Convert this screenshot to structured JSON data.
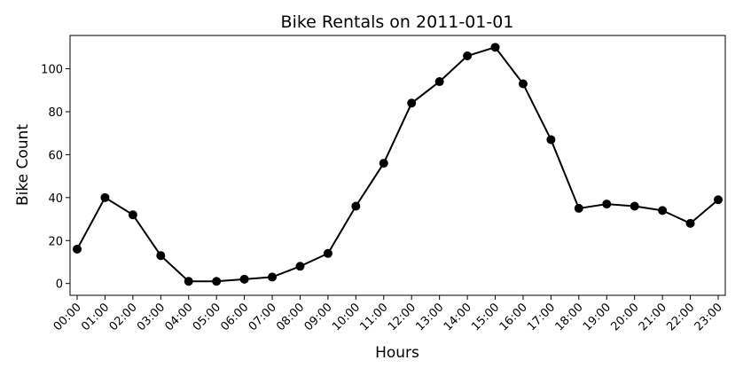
{
  "chart_data": {
    "type": "line",
    "title": "Bike Rentals on 2011-01-01",
    "x_label": "Hours",
    "y_label": "Bike Count",
    "categories": [
      "00:00",
      "01:00",
      "02:00",
      "03:00",
      "04:00",
      "05:00",
      "06:00",
      "07:00",
      "08:00",
      "09:00",
      "10:00",
      "11:00",
      "12:00",
      "13:00",
      "14:00",
      "15:00",
      "16:00",
      "17:00",
      "18:00",
      "19:00",
      "20:00",
      "21:00",
      "22:00",
      "23:00"
    ],
    "values": [
      16,
      40,
      32,
      13,
      1,
      1,
      2,
      3,
      8,
      14,
      36,
      56,
      84,
      94,
      106,
      110,
      93,
      67,
      35,
      37,
      36,
      34,
      28,
      39
    ],
    "color": "#000000",
    "ylim": [
      -5.5,
      115.5
    ],
    "yticks": [
      0,
      20,
      40,
      60,
      80,
      100
    ],
    "grid": false
  }
}
